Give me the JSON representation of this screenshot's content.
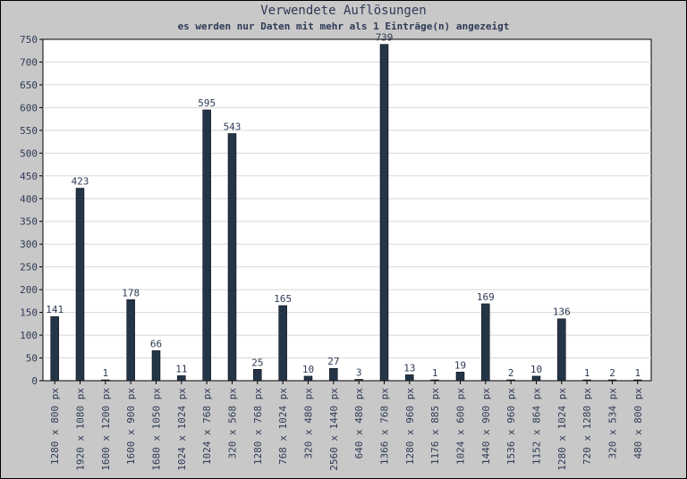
{
  "chart_data": {
    "type": "bar",
    "title": "Verwendete Auflösungen",
    "subtitle": "es werden nur Daten mit mehr als 1 Einträge(n) angezeigt",
    "categories": [
      "1280 x 800 px",
      "1920 x 1080 px",
      "1600 x 1200 px",
      "1600 x 900 px",
      "1680 x 1050 px",
      "1024 x 1024 px",
      "1024 x 768 px",
      "320 x 568 px",
      "1280 x 768 px",
      "768 x 1024 px",
      "320 x 480 px",
      "2560 x 1440 px",
      "640 x 480 px",
      "1366 x 768 px",
      "1280 x 960 px",
      "1176 x 885 px",
      "1024 x 600 px",
      "1440 x 900 px",
      "1536 x 960 px",
      "1152 x 864 px",
      "1280 x 1024 px",
      "720 x 1280 px",
      "320 x 534 px",
      "480 x 800 px"
    ],
    "values": [
      141,
      423,
      1,
      178,
      66,
      11,
      595,
      543,
      25,
      165,
      10,
      27,
      3,
      739,
      13,
      1,
      19,
      169,
      2,
      10,
      136,
      1,
      2,
      1
    ],
    "ylim": [
      0,
      750
    ],
    "yticks": [
      0,
      50,
      100,
      150,
      200,
      250,
      300,
      350,
      400,
      450,
      500,
      550,
      600,
      650,
      700,
      750
    ],
    "grid": true,
    "colors": {
      "bar": "#243548",
      "plot_bg": "#ffffff",
      "grid": "#d8d8d8",
      "text": "#2e3a55"
    }
  }
}
